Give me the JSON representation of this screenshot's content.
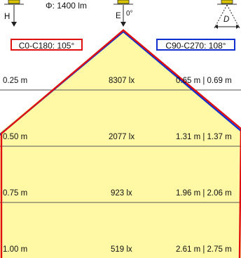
{
  "header": {
    "flux": "Φ: 1400 lm",
    "height_symbol": "H",
    "illuminance_symbol": "E",
    "angle_label": "0°",
    "diameter_symbol": "D"
  },
  "beam": {
    "c0_c180": {
      "label": "C0-C180: 105°",
      "angle_deg": 105,
      "color": "#e01010"
    },
    "c90_c270": {
      "label": "C90-C270: 108°",
      "angle_deg": 108,
      "color": "#1030d0"
    },
    "fill_color": "#fff9a6"
  },
  "rows": [
    {
      "distance": "0.25 m",
      "illuminance": "8307 lx",
      "diameter": "0.65 m | 0.69 m"
    },
    {
      "distance": "0.50 m",
      "illuminance": "2077 lx",
      "diameter": "1.31 m | 1.37 m"
    },
    {
      "distance": "0.75 m",
      "illuminance": "923 lx",
      "diameter": "1.96 m | 2.06 m"
    },
    {
      "distance": "1.00 m",
      "illuminance": "519 lx",
      "diameter": "2.61 m | 2.75 m"
    }
  ]
}
